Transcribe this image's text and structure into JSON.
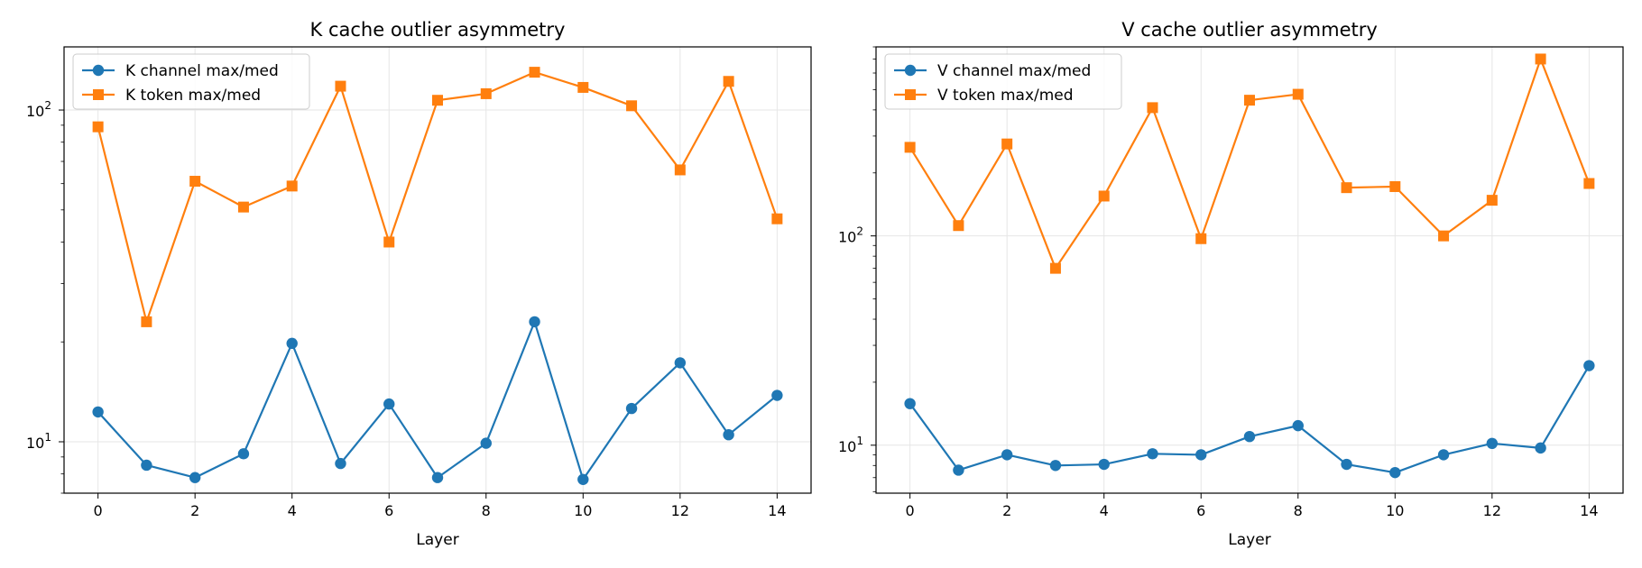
{
  "chart_data": [
    {
      "type": "line",
      "title": "K cache outlier asymmetry",
      "xlabel": "Layer",
      "ylabel": "",
      "yscale": "log",
      "xlim": [
        -0.7,
        14.7
      ],
      "ylim": [
        7.0,
        155
      ],
      "grid": true,
      "legend_position": "top-left",
      "x": [
        0,
        1,
        2,
        3,
        4,
        5,
        6,
        7,
        8,
        9,
        10,
        11,
        12,
        13,
        14
      ],
      "x_ticks": [
        "0",
        "2",
        "4",
        "6",
        "8",
        "10",
        "12",
        "14"
      ],
      "y_ticks": [
        {
          "base": "10",
          "exp": "1",
          "value": 10
        },
        {
          "base": "10",
          "exp": "2",
          "value": 100
        }
      ],
      "series": [
        {
          "name": "K channel max/med",
          "color": "#1f77b4",
          "marker": "circle",
          "values": [
            12.3,
            8.5,
            7.8,
            9.2,
            19.8,
            8.6,
            13.0,
            7.8,
            9.9,
            23.0,
            7.7,
            12.6,
            17.3,
            10.5,
            13.8
          ]
        },
        {
          "name": "K token max/med",
          "color": "#ff7f0e",
          "marker": "square",
          "values": [
            89,
            23.0,
            61,
            51,
            59,
            118,
            40,
            107,
            112,
            130,
            117,
            103,
            66,
            122,
            47
          ]
        }
      ]
    },
    {
      "type": "line",
      "title": "V cache outlier asymmetry",
      "xlabel": "Layer",
      "ylabel": "",
      "yscale": "log",
      "xlim": [
        -0.7,
        14.7
      ],
      "ylim": [
        5.9,
        800
      ],
      "grid": true,
      "legend_position": "top-left",
      "x": [
        0,
        1,
        2,
        3,
        4,
        5,
        6,
        7,
        8,
        9,
        10,
        11,
        12,
        13,
        14
      ],
      "x_ticks": [
        "0",
        "2",
        "4",
        "6",
        "8",
        "10",
        "12",
        "14"
      ],
      "y_ticks": [
        {
          "base": "10",
          "exp": "1",
          "value": 10
        },
        {
          "base": "10",
          "exp": "2",
          "value": 100
        }
      ],
      "series": [
        {
          "name": "V channel max/med",
          "color": "#1f77b4",
          "marker": "circle",
          "values": [
            15.8,
            7.6,
            9.0,
            8.0,
            8.1,
            9.1,
            9.0,
            11.0,
            12.4,
            8.1,
            7.4,
            9.0,
            10.2,
            9.7,
            24.0
          ]
        },
        {
          "name": "V token max/med",
          "color": "#ff7f0e",
          "marker": "square",
          "values": [
            265,
            112,
            275,
            70,
            155,
            410,
            97,
            445,
            475,
            170,
            172,
            100,
            148,
            700,
            178
          ]
        }
      ]
    }
  ]
}
